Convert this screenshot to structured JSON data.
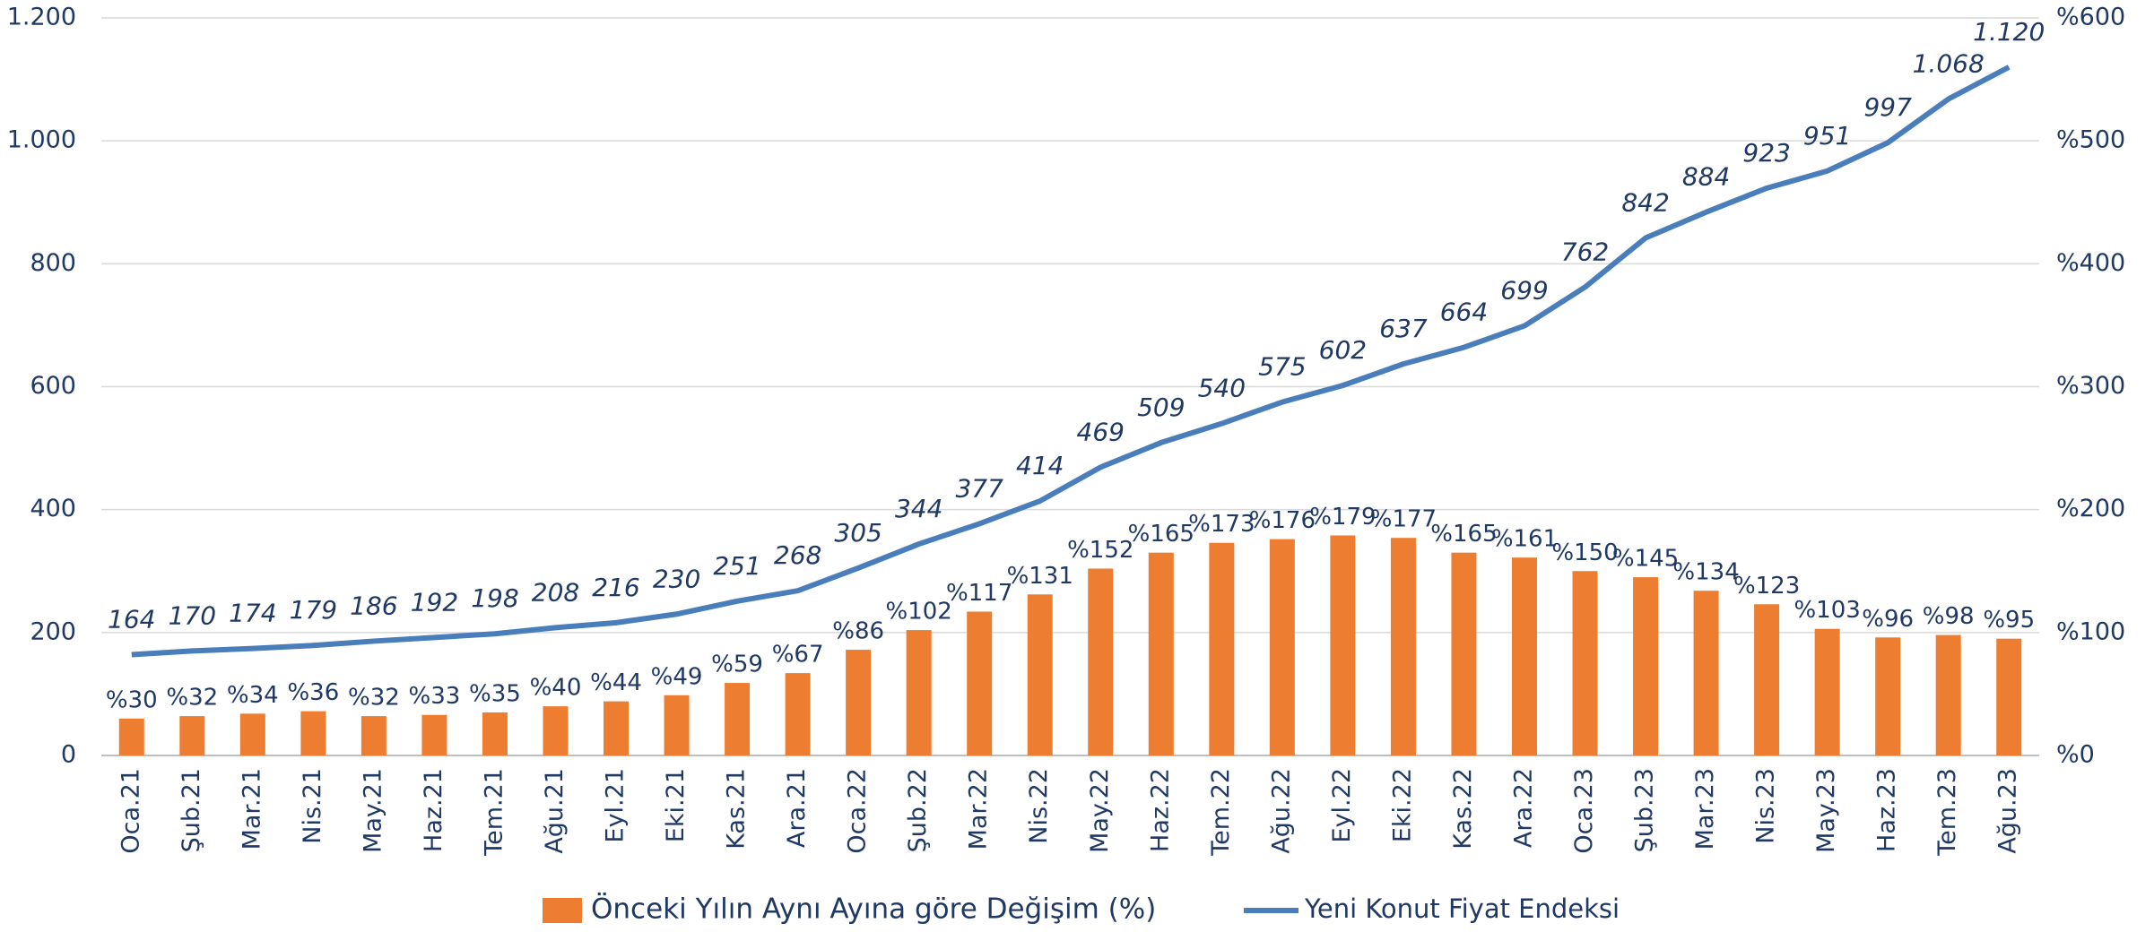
{
  "chart_data": {
    "type": "bar-line",
    "categories": [
      "Oca.21",
      "Şub.21",
      "Mar.21",
      "Nis.21",
      "May.21",
      "Haz.21",
      "Tem.21",
      "Ağu.21",
      "Eyl.21",
      "Eki.21",
      "Kas.21",
      "Ara.21",
      "Oca.22",
      "Şub.22",
      "Mar.22",
      "Nis.22",
      "May.22",
      "Haz.22",
      "Tem.22",
      "Ağu.22",
      "Eyl.22",
      "Eki.22",
      "Kas.22",
      "Ara.22",
      "Oca.23",
      "Şub.23",
      "Mar.23",
      "Nis.23",
      "May.23",
      "Haz.23",
      "Tem.23",
      "Ağu.23"
    ],
    "series": [
      {
        "name": "Önceki Yılın Aynı Ayına göre Değişim (%)",
        "type": "bar",
        "axis": "y2",
        "color": "#ed7d31",
        "values": [
          30,
          32,
          34,
          36,
          32,
          33,
          35,
          40,
          44,
          49,
          59,
          67,
          86,
          102,
          117,
          131,
          152,
          165,
          173,
          176,
          179,
          177,
          165,
          161,
          150,
          145,
          134,
          123,
          103,
          96,
          98,
          95
        ],
        "value_labels": [
          "%30",
          "%32",
          "%34",
          "%36",
          "%32",
          "%33",
          "%35",
          "%40",
          "%44",
          "%49",
          "%59",
          "%67",
          "%86",
          "%102",
          "%117",
          "%131",
          "%152",
          "%165",
          "%173",
          "%176",
          "%179",
          "%177",
          "%165",
          "%161",
          "%150",
          "%145",
          "%134",
          "%123",
          "%103",
          "%96",
          "%98",
          "%95"
        ]
      },
      {
        "name": "Yeni Konut Fiyat Endeksi",
        "type": "line",
        "axis": "y",
        "color": "#4a7ebb",
        "values": [
          164,
          170,
          174,
          179,
          186,
          192,
          198,
          208,
          216,
          230,
          251,
          268,
          305,
          344,
          377,
          414,
          469,
          509,
          540,
          575,
          602,
          637,
          664,
          699,
          762,
          842,
          884,
          923,
          951,
          997,
          1068,
          1120
        ],
        "value_labels": [
          "164",
          "170",
          "174",
          "179",
          "186",
          "192",
          "198",
          "208",
          "216",
          "230",
          "251",
          "268",
          "305",
          "344",
          "377",
          "414",
          "469",
          "509",
          "540",
          "575",
          "602",
          "637",
          "664",
          "699",
          "762",
          "842",
          "884",
          "923",
          "951",
          "997",
          "1.068",
          "1.120"
        ]
      }
    ],
    "ylim": [
      0,
      1200
    ],
    "yticks": [
      0,
      200,
      400,
      600,
      800,
      {
        "value": 1000,
        "label": "1.000"
      },
      {
        "value": 1200,
        "label": "1.200"
      }
    ],
    "y2lim": [
      0,
      600
    ],
    "y2ticks": [
      {
        "value": 0,
        "label": "%0"
      },
      {
        "value": 100,
        "label": "%100"
      },
      {
        "value": 200,
        "label": "%200"
      },
      {
        "value": 300,
        "label": "%300"
      },
      {
        "value": 400,
        "label": "%400"
      },
      {
        "value": 500,
        "label": "%500"
      },
      {
        "value": 600,
        "label": "%600"
      }
    ],
    "grid": true,
    "legend": "bottom"
  }
}
